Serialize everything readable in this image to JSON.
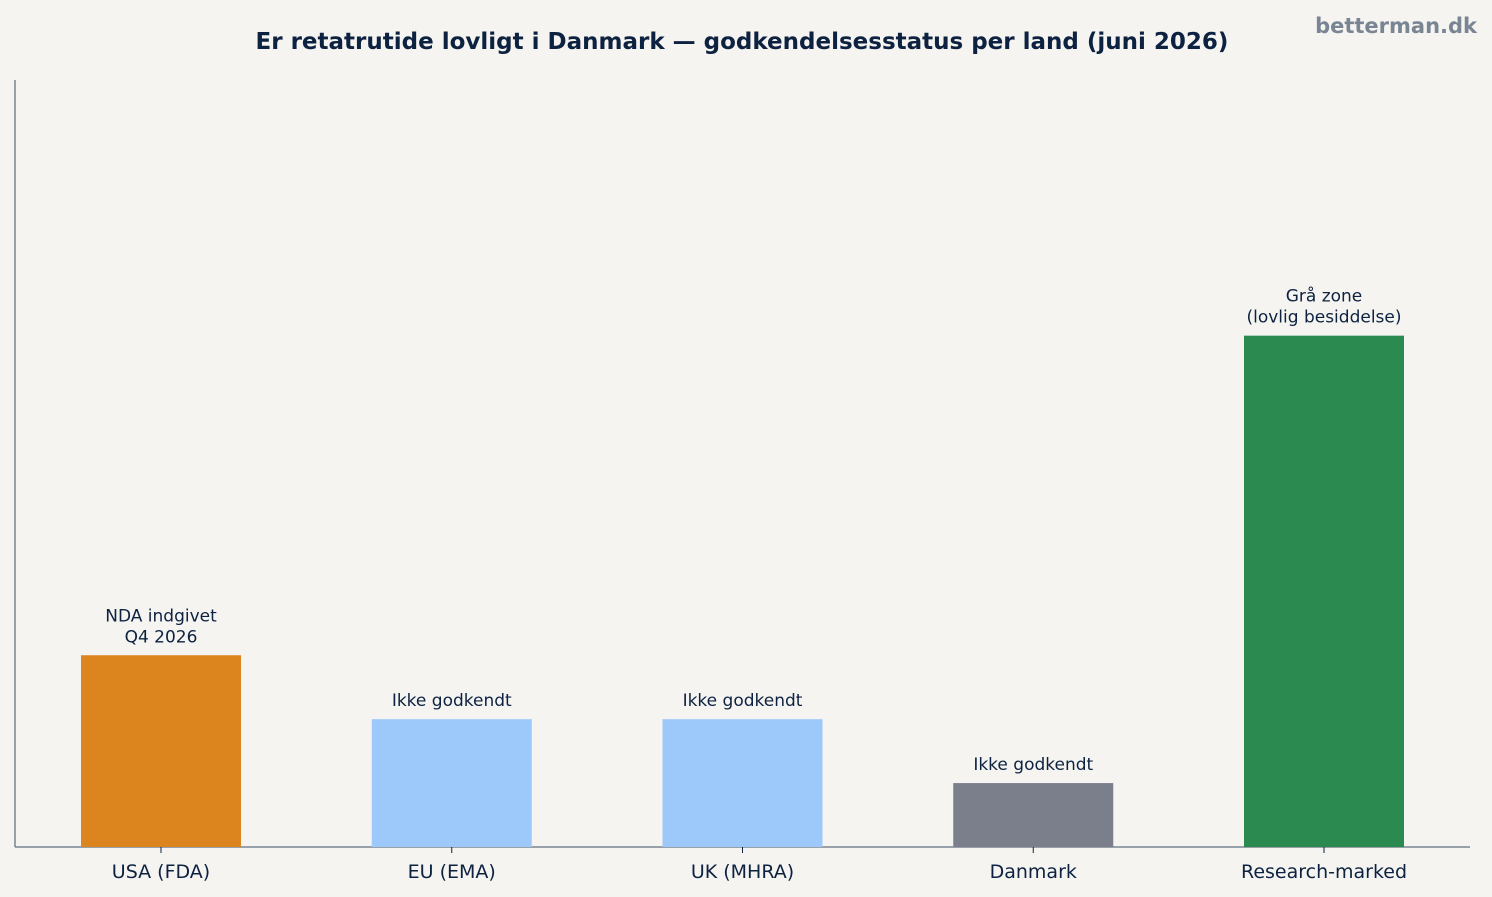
{
  "watermark": "betterman.dk",
  "chart_data": {
    "type": "bar",
    "title": "Er retatrutide lovligt i Danmark — godkendelsesstatus per land (juni 2026)",
    "xlabel": "",
    "ylabel": "",
    "categories": [
      "USA (FDA)",
      "EU (EMA)",
      "UK (MHRA)",
      "Danmark",
      "Research-marked"
    ],
    "values": [
      3,
      2,
      2,
      1,
      8
    ],
    "labels": [
      [
        "NDA indgivet",
        "Q4 2026"
      ],
      [
        "Ikke godkendt"
      ],
      [
        "Ikke godkendt"
      ],
      [
        "Ikke godkendt"
      ],
      [
        "Grå zone",
        "(lovlig besiddelse)"
      ]
    ],
    "colors": [
      "#dc841e",
      "#9dc8fa",
      "#9dc8fa",
      "#7a7f8b",
      "#2b8a4f"
    ],
    "ylim": [
      0,
      12
    ],
    "grid": false,
    "legend": "none"
  }
}
